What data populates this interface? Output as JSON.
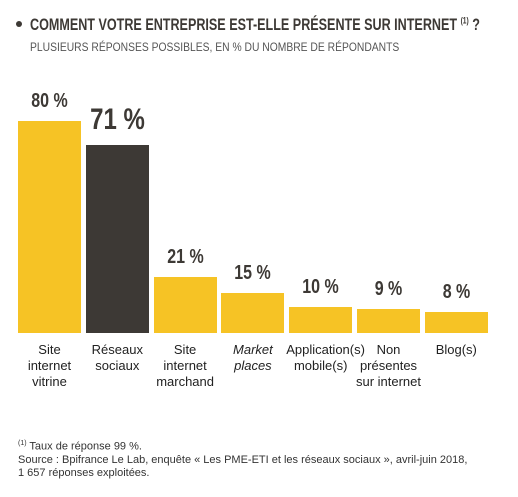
{
  "chart_data": {
    "type": "bar",
    "title": "COMMENT VOTRE ENTREPRISE EST-ELLE PRÉSENTE SUR INTERNET",
    "title_ref": "(1)",
    "title_end": "?",
    "subtitle": "PLUSIEURS RÉPONSES POSSIBLES, EN % DU NOMBRE DE RÉPONDANTS",
    "categories": [
      "Site internet vitrine",
      "Réseaux sociaux",
      "Site internet marchand",
      "Market places",
      "Application(s) mobile(s)",
      "Non présentes sur internet",
      "Blog(s)"
    ],
    "values": [
      80,
      71,
      21,
      15,
      10,
      9,
      8
    ],
    "value_labels": [
      "80 %",
      "71 %",
      "21 %",
      "15 %",
      "10 %",
      "9 %",
      "8 %"
    ],
    "colors": [
      "#f6c325",
      "#3d3935",
      "#f6c325",
      "#f6c325",
      "#f6c325",
      "#f6c325",
      "#f6c325"
    ],
    "footnote_ref": "(1)",
    "footnote": "Taux de réponse 99 %.",
    "source": [
      "Source : Bpifrance Le Lab, enquête « Les PME-ETI et les réseaux sociaux », avril-juin 2018,",
      "1 657 réponses exploitées."
    ]
  }
}
